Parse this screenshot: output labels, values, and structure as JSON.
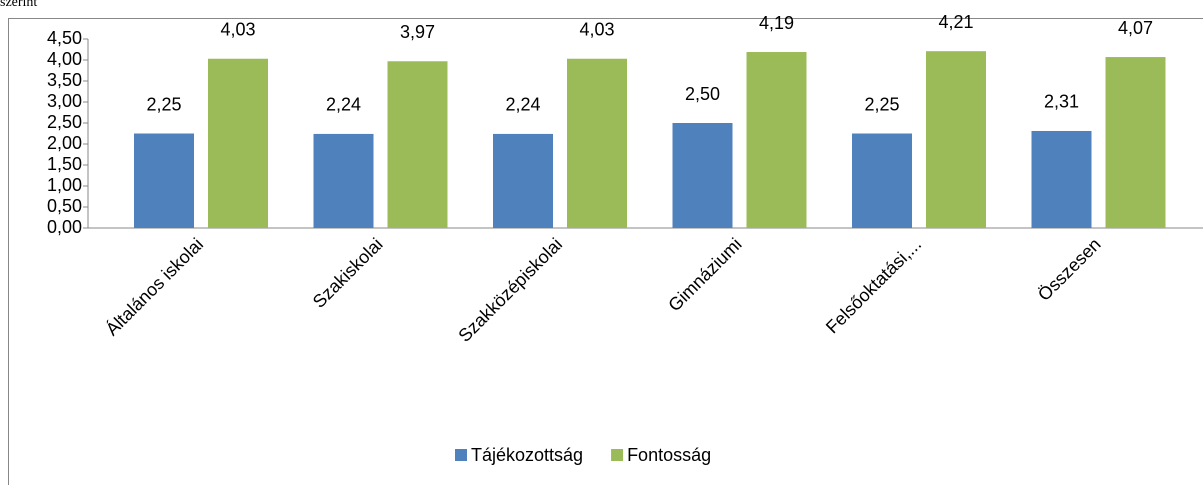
{
  "caption": "szerint",
  "chart_data": {
    "type": "bar",
    "categories": [
      "Általános iskolai",
      "Szakiskolai",
      "Szakközépiskolai",
      "Gimnáziumi",
      "Felsőoktatási,...",
      "Összesen"
    ],
    "series": [
      {
        "name": "Tájékozottság",
        "color": "#4f81bd",
        "values": [
          2.25,
          2.24,
          2.24,
          2.5,
          2.25,
          2.31
        ],
        "value_labels": [
          "2,25",
          "2,24",
          "2,24",
          "2,50",
          "2,25",
          "2,31"
        ]
      },
      {
        "name": "Fontosság",
        "color": "#9bbb59",
        "values": [
          4.03,
          3.97,
          4.03,
          4.19,
          4.21,
          4.07
        ],
        "value_labels": [
          "4,03",
          "3,97",
          "4,03",
          "4,19",
          "4,21",
          "4,07"
        ]
      }
    ],
    "ylim": [
      0,
      4.5
    ],
    "yticks": [
      {
        "value": 0,
        "label": "0,00"
      },
      {
        "value": 0.5,
        "label": "0,50"
      },
      {
        "value": 1,
        "label": "1,00"
      },
      {
        "value": 1.5,
        "label": "1,50"
      },
      {
        "value": 2,
        "label": "2,00"
      },
      {
        "value": 2.5,
        "label": "2,50"
      },
      {
        "value": 3,
        "label": "3,00"
      },
      {
        "value": 3.5,
        "label": "3,50"
      },
      {
        "value": 4,
        "label": "4,00"
      },
      {
        "value": 4.5,
        "label": "4,50"
      }
    ],
    "legend": "bottom"
  }
}
